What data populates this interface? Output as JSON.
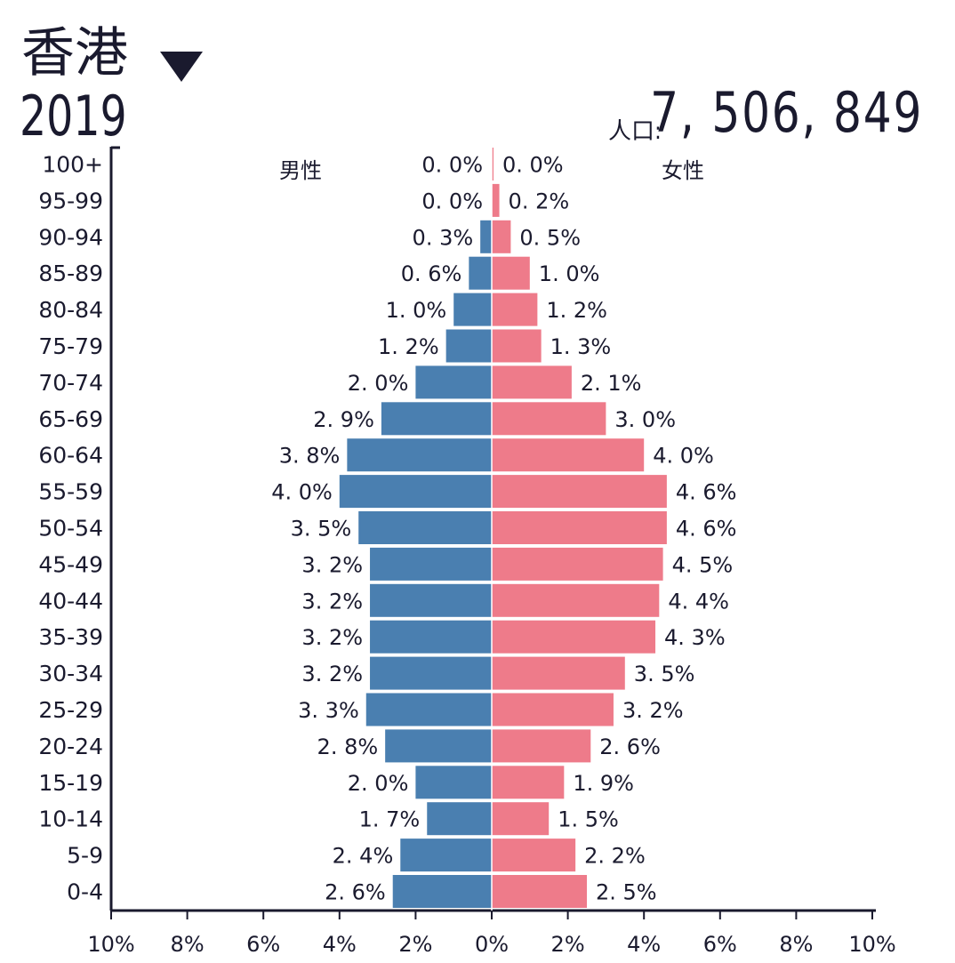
{
  "header": {
    "title": "香港",
    "year": "2019",
    "population_label": "人口:",
    "population_value": "7, 506, 849"
  },
  "colors": {
    "male": "#4a7fb0",
    "female": "#ee7b8a",
    "axis": "#1a1a2e"
  },
  "chart_data": {
    "type": "bar",
    "subtype": "population-pyramid",
    "male_label": "男性",
    "female_label": "女性",
    "categories": [
      "100+",
      "95-99",
      "90-94",
      "85-89",
      "80-84",
      "75-79",
      "70-74",
      "65-69",
      "60-64",
      "55-59",
      "50-54",
      "45-49",
      "40-44",
      "35-39",
      "30-34",
      "25-29",
      "20-24",
      "15-19",
      "10-14",
      "5-9",
      "0-4"
    ],
    "series": [
      {
        "name": "男性",
        "values": [
          0.0,
          0.0,
          0.3,
          0.6,
          1.0,
          1.2,
          2.0,
          2.9,
          3.8,
          4.0,
          3.5,
          3.2,
          3.2,
          3.2,
          3.2,
          3.3,
          2.8,
          2.0,
          1.7,
          2.4,
          2.6
        ],
        "labels": [
          "0. 0%",
          "0. 0%",
          "0. 3%",
          "0. 6%",
          "1. 0%",
          "1. 2%",
          "2. 0%",
          "2. 9%",
          "3. 8%",
          "4. 0%",
          "3. 5%",
          "3. 2%",
          "3. 2%",
          "3. 2%",
          "3. 2%",
          "3. 3%",
          "2. 8%",
          "2. 0%",
          "1. 7%",
          "2. 4%",
          "2. 6%"
        ]
      },
      {
        "name": "女性",
        "values": [
          0.0,
          0.2,
          0.5,
          1.0,
          1.2,
          1.3,
          2.1,
          3.0,
          4.0,
          4.6,
          4.6,
          4.5,
          4.4,
          4.3,
          3.5,
          3.2,
          2.6,
          1.9,
          1.5,
          2.2,
          2.5
        ],
        "labels": [
          "0. 0%",
          "0. 2%",
          "0. 5%",
          "1. 0%",
          "1. 2%",
          "1. 3%",
          "2. 1%",
          "3. 0%",
          "4. 0%",
          "4. 6%",
          "4. 6%",
          "4. 5%",
          "4. 4%",
          "4. 3%",
          "3. 5%",
          "3. 2%",
          "2. 6%",
          "1. 9%",
          "1. 5%",
          "2. 2%",
          "2. 5%"
        ]
      }
    ],
    "xlim": [
      -10,
      10
    ],
    "xticks": [
      "10%",
      "8%",
      "6%",
      "4%",
      "2%",
      "0%",
      "2%",
      "4%",
      "6%",
      "8%",
      "10%"
    ]
  }
}
